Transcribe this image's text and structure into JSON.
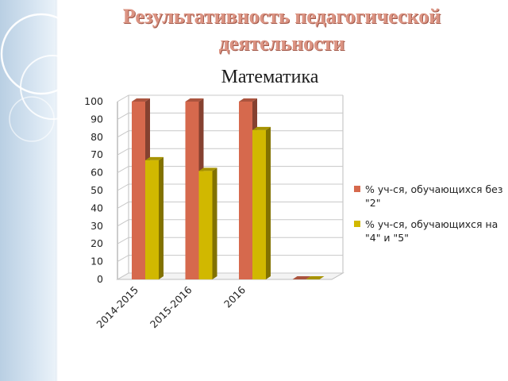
{
  "slide": {
    "title": "Результативность педагогической деятельности",
    "subject": "Математика"
  },
  "colors": {
    "series_1": "#d6694d",
    "series_2": "#d1b800",
    "grid": "#c8c8c8"
  },
  "chart_data": {
    "type": "bar",
    "categories": [
      "2014-2015",
      "2015-2016",
      "2016",
      ""
    ],
    "series": [
      {
        "name": "% уч-ся, обучающихся без \"2\"",
        "values": [
          100,
          100,
          100,
          0
        ]
      },
      {
        "name": "% уч-ся, обучающихся на \"4\" и \"5\"",
        "values": [
          67,
          61,
          84,
          0
        ]
      }
    ],
    "ylim": [
      0,
      100
    ],
    "yticks": [
      "0",
      "10",
      "20",
      "30",
      "40",
      "50",
      "60",
      "70",
      "80",
      "90",
      "100"
    ],
    "grid": true,
    "legend_position": "right"
  }
}
